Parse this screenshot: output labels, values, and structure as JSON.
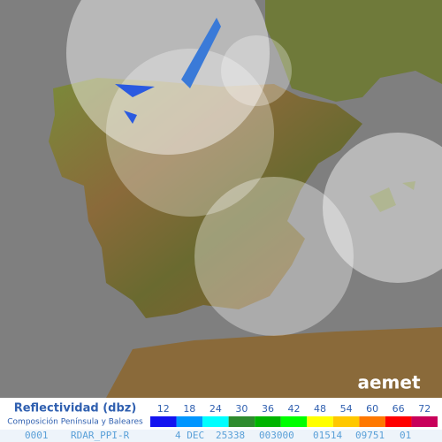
{
  "legend": {
    "title": "Reflectividad (dbz)",
    "subtitle": "Composición Península y Baleares",
    "levels": [
      {
        "value": 12,
        "color": "#1414f0"
      },
      {
        "value": 18,
        "color": "#0096ff"
      },
      {
        "value": 24,
        "color": "#00ffff"
      },
      {
        "value": 30,
        "color": "#2e8b2e"
      },
      {
        "value": 36,
        "color": "#00b400"
      },
      {
        "value": 42,
        "color": "#00ff00"
      },
      {
        "value": 48,
        "color": "#ffff00"
      },
      {
        "value": 54,
        "color": "#ffc800"
      },
      {
        "value": 60,
        "color": "#ff7800"
      },
      {
        "value": 66,
        "color": "#ff0000"
      },
      {
        "value": 72,
        "color": "#c8005a"
      }
    ]
  },
  "logo": "aemet",
  "footer": [
    "0001",
    "RDAR_PPI-R",
    "4 DEC",
    "25338",
    "003000",
    "01514",
    "09751",
    "01"
  ]
}
